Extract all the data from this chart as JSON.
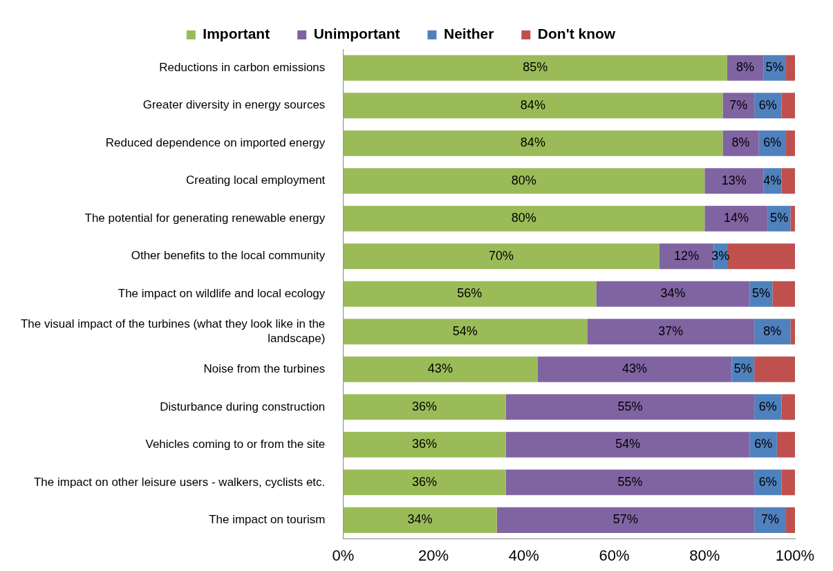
{
  "chart_data": {
    "type": "bar",
    "orientation": "horizontal",
    "stacked": true,
    "legend": "top",
    "grid": false,
    "categories": [
      "Reductions in carbon emissions",
      "Greater diversity in energy sources",
      "Reduced dependence on imported energy",
      "Creating local employment",
      "The potential for generating renewable energy",
      "Other benefits to the local community",
      "The impact on wildlife and local ecology",
      "The visual impact of the turbines (what they look like in the landscape)",
      "Noise from the turbines",
      "Disturbance during construction",
      "Vehicles coming to or from the site",
      "The impact on other leisure users - walkers, cyclists etc.",
      "The impact on tourism"
    ],
    "xlim": [
      0,
      100
    ],
    "xticks": [
      {
        "value": 0,
        "label": "0%"
      },
      {
        "value": 20,
        "label": "20%"
      },
      {
        "value": 40,
        "label": "40%"
      },
      {
        "value": 60,
        "label": "60%"
      },
      {
        "value": 80,
        "label": "80%"
      },
      {
        "value": 100,
        "label": "100%"
      }
    ],
    "series": [
      {
        "name": "Important",
        "color": "#9bbb59",
        "values": [
          85,
          84,
          84,
          80,
          80,
          70,
          56,
          54,
          43,
          36,
          36,
          36,
          34
        ],
        "value_labels": [
          "85%",
          "84%",
          "84%",
          "80%",
          "80%",
          "70%",
          "56%",
          "54%",
          "43%",
          "36%",
          "36%",
          "36%",
          "34%"
        ]
      },
      {
        "name": "Unimportant",
        "color": "#8064a2",
        "values": [
          8,
          7,
          8,
          13,
          14,
          12,
          34,
          37,
          43,
          55,
          54,
          55,
          57
        ],
        "value_labels": [
          "8%",
          "7%",
          "8%",
          "13%",
          "14%",
          "12%",
          "34%",
          "37%",
          "43%",
          "55%",
          "54%",
          "55%",
          "57%"
        ]
      },
      {
        "name": "Neither",
        "color": "#4f81bd",
        "values": [
          5,
          6,
          6,
          4,
          5,
          3,
          5,
          8,
          5,
          6,
          6,
          6,
          7
        ],
        "value_labels": [
          "5%",
          "6%",
          "6%",
          "4%",
          "5%",
          "3%",
          "5%",
          "8%",
          "5%",
          "6%",
          "6%",
          "6%",
          "7%"
        ]
      },
      {
        "name": "Don't know",
        "color": "#c0504d",
        "values": [
          2,
          3,
          2,
          3,
          1,
          15,
          5,
          1,
          9,
          3,
          4,
          3,
          2
        ]
      }
    ]
  }
}
